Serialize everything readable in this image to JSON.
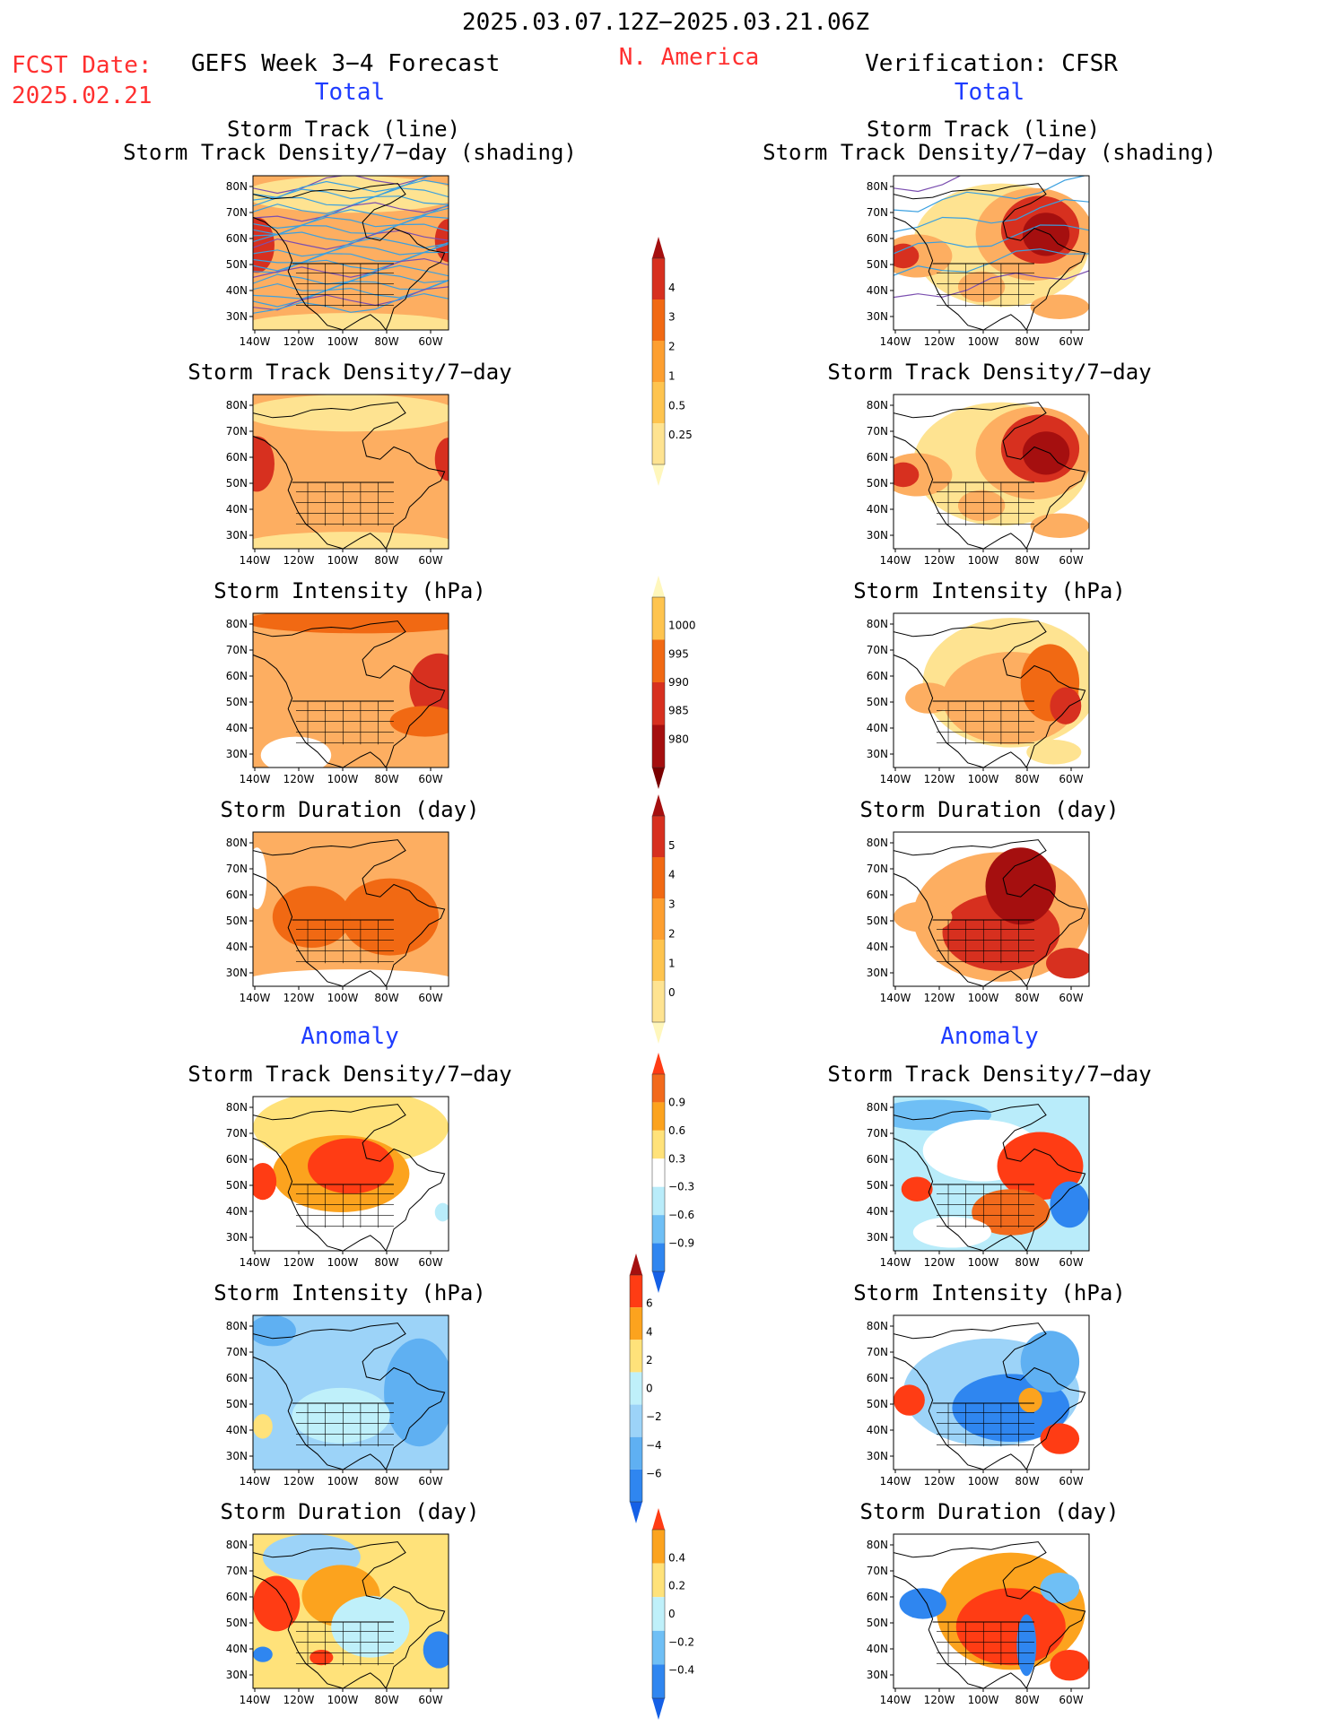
{
  "header": {
    "period": "2025.03.07.12Z−2025.03.21.06Z",
    "fcst_label": "FCST Date:",
    "fcst_date": "2025.02.21",
    "model_title": "GEFS Week 3−4 Forecast",
    "region": "N. America",
    "verification_title": "Verification: CFSR"
  },
  "sections": {
    "total_left": "Total",
    "total_right": "Total",
    "anomaly_left": "Anomaly",
    "anomaly_right": "Anomaly"
  },
  "panel_titles": {
    "track_line": "Storm Track (line)",
    "track_shading": "Storm Track Density/7−day (shading)",
    "density": "Storm Track Density/7−day",
    "intensity": "Storm Intensity (hPa)",
    "duration": "Storm Duration (day)"
  },
  "axes": {
    "lat_labels": [
      "80N",
      "70N",
      "60N",
      "50N",
      "40N",
      "30N"
    ],
    "lon_labels": [
      "140W",
      "120W",
      "100W",
      "80W",
      "60W"
    ]
  },
  "colorbars": {
    "density_total": {
      "labels": [
        "4",
        "3",
        "2",
        "1",
        "0.5",
        "0.25"
      ],
      "colors": [
        "#a50f0f",
        "#d7301f",
        "#f16913",
        "#fd9f30",
        "#fec44f",
        "#fee391",
        "#fff7bc"
      ]
    },
    "intensity_total": {
      "labels": [
        "1000",
        "995",
        "990",
        "985",
        "980"
      ],
      "colors": [
        "#fff7bc",
        "#fec44f",
        "#f16913",
        "#d7301f",
        "#a50f0f",
        "#7a0000"
      ]
    },
    "duration_total": {
      "labels": [
        "5",
        "4",
        "3",
        "2",
        "1",
        "0"
      ],
      "colors": [
        "#a50f0f",
        "#d7301f",
        "#f16913",
        "#fd9f30",
        "#fec44f",
        "#fee391",
        "#fff7bc"
      ]
    },
    "density_anom": {
      "labels": [
        "0.9",
        "0.6",
        "0.3",
        "−0.3",
        "−0.6",
        "−0.9"
      ],
      "colors": [
        "#ff3c14",
        "#f26a1c",
        "#fca31e",
        "#ffe27a",
        "#ffffff",
        "#b9ecfa",
        "#6fbff5",
        "#2f86f0",
        "#1560e6"
      ]
    },
    "intensity_anom": {
      "labels": [
        "6",
        "4",
        "2",
        "0",
        "−2",
        "−4",
        "−6"
      ],
      "colors": [
        "#a50f0f",
        "#ff3c14",
        "#fca31e",
        "#ffe27a",
        "#bff0fa",
        "#9cd3f8",
        "#5fb0f2",
        "#2f86f0",
        "#1560e6"
      ]
    },
    "duration_anom": {
      "labels": [
        "0.4",
        "0.2",
        "0",
        "−0.2",
        "−0.4"
      ],
      "colors": [
        "#ff3c14",
        "#fca31e",
        "#ffe27a",
        "#bff0fa",
        "#6fbff5",
        "#2f86f0",
        "#1560e6"
      ]
    }
  },
  "map_fields": {
    "left_density": {
      "base": "#fdae61",
      "blobs": [
        [
          "#d7301f",
          0.02,
          0.45,
          0.09,
          0.18
        ],
        [
          "#d7301f",
          1.0,
          0.42,
          0.07,
          0.14
        ],
        [
          "#fee391",
          0.5,
          0.12,
          0.55,
          0.12
        ],
        [
          "#fee391",
          0.5,
          0.97,
          0.55,
          0.08
        ]
      ]
    },
    "right_density": {
      "base": "#ffffff",
      "blobs": [
        [
          "#fee391",
          0.55,
          0.45,
          0.45,
          0.4
        ],
        [
          "#fdae61",
          0.72,
          0.38,
          0.3,
          0.3
        ],
        [
          "#d7301f",
          0.75,
          0.35,
          0.2,
          0.22
        ],
        [
          "#a50f0f",
          0.78,
          0.38,
          0.12,
          0.14
        ],
        [
          "#fdae61",
          0.12,
          0.52,
          0.18,
          0.14
        ],
        [
          "#d7301f",
          0.05,
          0.52,
          0.08,
          0.08
        ],
        [
          "#fdae61",
          0.45,
          0.72,
          0.12,
          0.1
        ],
        [
          "#fdae61",
          0.85,
          0.85,
          0.15,
          0.08
        ]
      ]
    },
    "left_intensity": {
      "base": "#fdae61",
      "blobs": [
        [
          "#f16913",
          0.55,
          0.05,
          0.6,
          0.08
        ],
        [
          "#d7301f",
          0.95,
          0.48,
          0.15,
          0.22
        ],
        [
          "#f16913",
          0.88,
          0.7,
          0.18,
          0.1
        ],
        [
          "#ffffff",
          0.22,
          0.92,
          0.18,
          0.12
        ]
      ]
    },
    "right_intensity": {
      "base": "#ffffff",
      "blobs": [
        [
          "#fee391",
          0.6,
          0.45,
          0.45,
          0.42
        ],
        [
          "#fdae61",
          0.6,
          0.55,
          0.35,
          0.3
        ],
        [
          "#f16913",
          0.8,
          0.45,
          0.15,
          0.25
        ],
        [
          "#d7301f",
          0.88,
          0.6,
          0.08,
          0.12
        ],
        [
          "#fdae61",
          0.18,
          0.55,
          0.12,
          0.1
        ],
        [
          "#fee391",
          0.82,
          0.9,
          0.14,
          0.08
        ]
      ]
    },
    "left_duration": {
      "base": "#fdae61",
      "blobs": [
        [
          "#f16913",
          0.7,
          0.55,
          0.25,
          0.25
        ],
        [
          "#f16913",
          0.3,
          0.55,
          0.2,
          0.2
        ],
        [
          "#ffffff",
          0.5,
          0.97,
          0.55,
          0.08
        ],
        [
          "#ffffff",
          0.02,
          0.3,
          0.05,
          0.2
        ]
      ]
    },
    "right_duration": {
      "base": "#ffffff",
      "blobs": [
        [
          "#fdae61",
          0.55,
          0.55,
          0.45,
          0.42
        ],
        [
          "#d7301f",
          0.55,
          0.65,
          0.3,
          0.25
        ],
        [
          "#a50f0f",
          0.65,
          0.35,
          0.18,
          0.25
        ],
        [
          "#d7301f",
          0.9,
          0.85,
          0.12,
          0.1
        ],
        [
          "#fdae61",
          0.15,
          0.55,
          0.15,
          0.1
        ]
      ]
    },
    "left_density_anom": {
      "base": "#ffffff",
      "blobs": [
        [
          "#ffe27a",
          0.5,
          0.2,
          0.5,
          0.25
        ],
        [
          "#fca31e",
          0.45,
          0.5,
          0.35,
          0.25
        ],
        [
          "#ff3c14",
          0.5,
          0.45,
          0.22,
          0.18
        ],
        [
          "#ff3c14",
          0.05,
          0.55,
          0.07,
          0.12
        ],
        [
          "#b9ecfa",
          0.97,
          0.75,
          0.04,
          0.06
        ]
      ]
    },
    "right_density_anom": {
      "base": "#b9ecfa",
      "blobs": [
        [
          "#6fbff5",
          0.2,
          0.12,
          0.3,
          0.1
        ],
        [
          "#ffffff",
          0.45,
          0.35,
          0.3,
          0.2
        ],
        [
          "#ff3c14",
          0.75,
          0.45,
          0.22,
          0.22
        ],
        [
          "#f26a1c",
          0.6,
          0.75,
          0.2,
          0.15
        ],
        [
          "#ff3c14",
          0.12,
          0.6,
          0.08,
          0.08
        ],
        [
          "#2f86f0",
          0.9,
          0.7,
          0.1,
          0.15
        ],
        [
          "#ffffff",
          0.3,
          0.88,
          0.2,
          0.1
        ]
      ]
    },
    "left_intensity_anom": {
      "base": "#9cd3f8",
      "blobs": [
        [
          "#5fb0f2",
          0.85,
          0.5,
          0.18,
          0.35
        ],
        [
          "#bff0fa",
          0.45,
          0.65,
          0.25,
          0.18
        ],
        [
          "#ffe27a",
          0.05,
          0.72,
          0.05,
          0.08
        ],
        [
          "#5fb0f2",
          0.1,
          0.1,
          0.12,
          0.1
        ]
      ]
    },
    "right_intensity_anom": {
      "base": "#ffffff",
      "blobs": [
        [
          "#9cd3f8",
          0.5,
          0.5,
          0.45,
          0.35
        ],
        [
          "#2f86f0",
          0.6,
          0.6,
          0.3,
          0.22
        ],
        [
          "#5fb0f2",
          0.8,
          0.3,
          0.15,
          0.2
        ],
        [
          "#ff3c14",
          0.08,
          0.55,
          0.08,
          0.1
        ],
        [
          "#fca31e",
          0.7,
          0.55,
          0.06,
          0.08
        ],
        [
          "#ff3c14",
          0.85,
          0.8,
          0.1,
          0.1
        ]
      ]
    },
    "left_duration_anom": {
      "base": "#ffe27a",
      "blobs": [
        [
          "#9cd3f8",
          0.3,
          0.15,
          0.25,
          0.15
        ],
        [
          "#ff3c14",
          0.12,
          0.45,
          0.12,
          0.18
        ],
        [
          "#fca31e",
          0.45,
          0.4,
          0.2,
          0.2
        ],
        [
          "#bff0fa",
          0.6,
          0.6,
          0.2,
          0.2
        ],
        [
          "#2f86f0",
          0.95,
          0.75,
          0.08,
          0.12
        ],
        [
          "#2f86f0",
          0.05,
          0.78,
          0.05,
          0.05
        ],
        [
          "#ff3c14",
          0.35,
          0.8,
          0.06,
          0.05
        ]
      ]
    },
    "right_duration_anom": {
      "base": "#ffffff",
      "blobs": [
        [
          "#fca31e",
          0.6,
          0.5,
          0.38,
          0.38
        ],
        [
          "#ff3c14",
          0.6,
          0.6,
          0.28,
          0.25
        ],
        [
          "#2f86f0",
          0.15,
          0.45,
          0.12,
          0.1
        ],
        [
          "#2f86f0",
          0.68,
          0.72,
          0.05,
          0.2
        ],
        [
          "#ff3c14",
          0.9,
          0.85,
          0.1,
          0.1
        ],
        [
          "#6fbff5",
          0.85,
          0.35,
          0.1,
          0.1
        ]
      ]
    }
  }
}
